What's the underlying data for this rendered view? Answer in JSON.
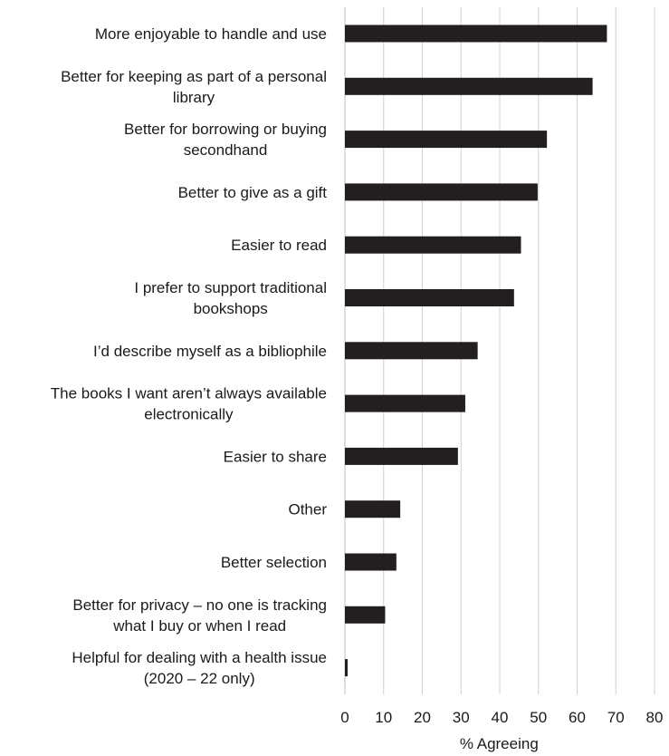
{
  "chart_data": {
    "type": "bar",
    "orientation": "horizontal",
    "categories": [
      [
        "More enjoyable to handle and use"
      ],
      [
        "Better for keeping as part of a personal",
        "library"
      ],
      [
        "Better for borrowing or buying",
        "secondhand"
      ],
      [
        "Better to give as a gift"
      ],
      [
        "Easier to read"
      ],
      [
        "I prefer to support traditional",
        "bookshops"
      ],
      [
        "I’d describe myself as a bibliophile"
      ],
      [
        "The books I want aren’t always available",
        "electronically"
      ],
      [
        "Easier to share"
      ],
      [
        "Other"
      ],
      [
        "Better selection"
      ],
      [
        "Better for privacy – no one is tracking",
        "what I buy or when I read"
      ],
      [
        "Helpful for dealing with a health issue",
        "(2020 – 22 only)"
      ]
    ],
    "values": [
      67.7,
      64.0,
      52.2,
      49.8,
      45.5,
      43.7,
      34.3,
      31.1,
      29.2,
      14.3,
      13.3,
      10.4,
      0.7
    ],
    "xlim": [
      0,
      80
    ],
    "xticks": [
      0,
      10,
      20,
      30,
      40,
      50,
      60,
      70,
      80
    ],
    "xlabel": "% Agreeing",
    "ylabel": "",
    "title": "",
    "grid": "vertical",
    "bar_color": "#231f20",
    "legend": "none"
  }
}
